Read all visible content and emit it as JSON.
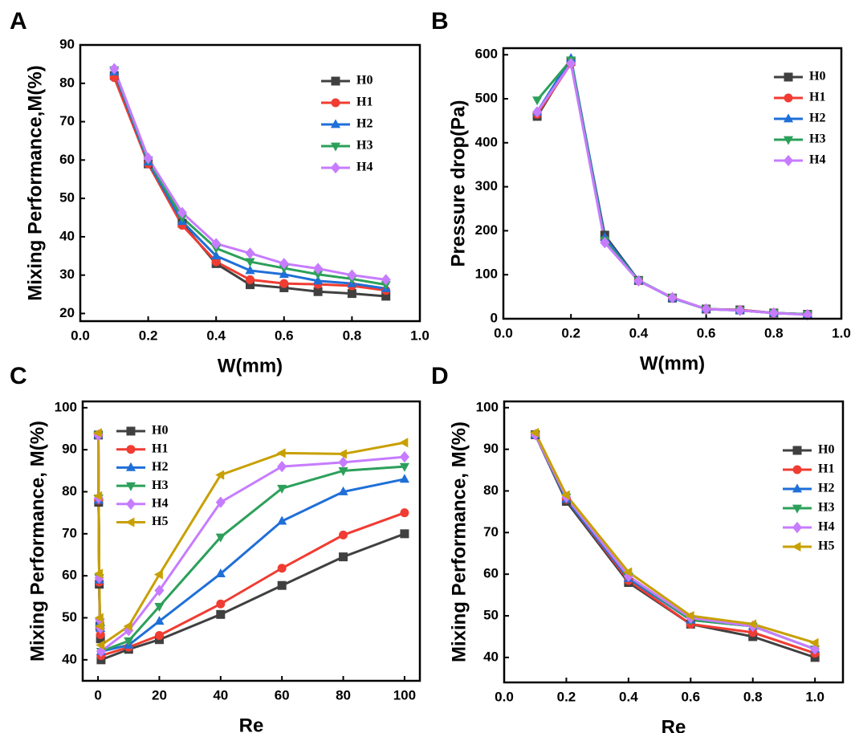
{
  "chart_data": [
    {
      "type": "line",
      "panel": "A",
      "x_label": "W(mm)",
      "y_label": "Mixing Performance,M(%)",
      "x": [
        0.1,
        0.2,
        0.3,
        0.4,
        0.5,
        0.6,
        0.7,
        0.8,
        0.9
      ],
      "xlim": [
        0,
        1
      ],
      "xticks": [
        {
          "value": 0,
          "label": "0.0"
        },
        0.2,
        0.4,
        0.6,
        0.8,
        {
          "value": 1,
          "label": "1.0"
        }
      ],
      "ylim": [
        18,
        90
      ],
      "yticks": [
        20,
        30,
        40,
        50,
        60,
        70,
        80,
        90
      ],
      "legend": "upper right",
      "series": [
        {
          "name": "H0",
          "color": "#404040",
          "marker": "square",
          "values": [
            82,
            59,
            43.5,
            33,
            27.5,
            26.7,
            25.7,
            25.2,
            24.5
          ]
        },
        {
          "name": "H1",
          "color": "#f03c32",
          "marker": "circle",
          "values": [
            81.5,
            59,
            43,
            33.5,
            28.8,
            27.8,
            27.6,
            27.2,
            26
          ]
        },
        {
          "name": "H2",
          "color": "#1f6fd8",
          "marker": "triangle-up",
          "values": [
            83,
            59.5,
            44,
            35,
            31.2,
            30.2,
            28.5,
            27.8,
            26.5
          ]
        },
        {
          "name": "H3",
          "color": "#2ca05a",
          "marker": "triangle-down",
          "values": [
            83.5,
            60,
            45,
            37,
            33.5,
            31.8,
            30.2,
            29,
            27.5
          ]
        },
        {
          "name": "H4",
          "color": "#c77cff",
          "marker": "diamond",
          "values": [
            83.8,
            60.5,
            46.3,
            38.2,
            35.7,
            33,
            31.7,
            30,
            28.8
          ]
        }
      ]
    },
    {
      "type": "line",
      "panel": "B",
      "x_label": "W(mm)",
      "y_label": "Pressure drop(Pa)",
      "x": [
        0.1,
        0.2,
        0.3,
        0.4,
        0.5,
        0.6,
        0.7,
        0.8,
        0.9
      ],
      "xlim": [
        0,
        1
      ],
      "xticks": [
        {
          "value": 0,
          "label": "0.0"
        },
        0.2,
        0.4,
        0.6,
        0.8,
        {
          "value": 1,
          "label": "1.0"
        }
      ],
      "ylim": [
        0,
        615
      ],
      "yticks": [
        0,
        100,
        200,
        300,
        400,
        500,
        600
      ],
      "legend": "upper right",
      "series": [
        {
          "name": "H0",
          "color": "#404040",
          "marker": "square",
          "values": [
            460,
            585,
            190,
            87,
            47,
            22,
            20,
            13,
            10
          ]
        },
        {
          "name": "H1",
          "color": "#f03c32",
          "marker": "circle",
          "values": [
            465,
            580,
            180,
            86,
            48,
            22,
            20,
            13,
            10
          ]
        },
        {
          "name": "H2",
          "color": "#1f6fd8",
          "marker": "triangle-up",
          "values": [
            470,
            592,
            185,
            87,
            47,
            22,
            19,
            13,
            10
          ]
        },
        {
          "name": "H3",
          "color": "#2ca05a",
          "marker": "triangle-down",
          "values": [
            497,
            588,
            178,
            87,
            48,
            22,
            19,
            13,
            10
          ]
        },
        {
          "name": "H4",
          "color": "#c77cff",
          "marker": "diamond",
          "values": [
            470,
            580,
            173,
            86,
            48,
            22,
            19,
            13,
            9
          ]
        }
      ]
    },
    {
      "type": "line",
      "panel": "C",
      "x_label": "Re",
      "y_label": "Mixing Performance, M(%)",
      "x": [
        0.1,
        0.2,
        0.4,
        0.6,
        0.8,
        1,
        10,
        20,
        40,
        60,
        80,
        100
      ],
      "xlim": [
        -5,
        105
      ],
      "xticks": [
        0,
        20,
        40,
        60,
        80,
        100
      ],
      "ylim": [
        35,
        101.5
      ],
      "yticks": [
        40,
        50,
        60,
        70,
        80,
        90,
        100
      ],
      "legend": "upper left",
      "series": [
        {
          "name": "H0",
          "color": "#404040",
          "marker": "square",
          "values": [
            93.5,
            77.5,
            58,
            48,
            45,
            40,
            42.5,
            44.8,
            50.8,
            57.7,
            64.5,
            70
          ]
        },
        {
          "name": "H1",
          "color": "#f03c32",
          "marker": "circle",
          "values": [
            93.5,
            78,
            58.5,
            48,
            46,
            41,
            43,
            45.8,
            53.3,
            61.8,
            69.7,
            75
          ]
        },
        {
          "name": "H2",
          "color": "#1f6fd8",
          "marker": "triangle-up",
          "values": [
            93.5,
            78,
            59,
            49,
            47.5,
            42,
            43.5,
            49.2,
            60.5,
            73,
            80,
            83
          ]
        },
        {
          "name": "H3",
          "color": "#2ca05a",
          "marker": "triangle-down",
          "values": [
            93.5,
            78.5,
            59.5,
            49,
            47.5,
            42,
            44.5,
            52.7,
            69.2,
            80.8,
            85,
            86
          ]
        },
        {
          "name": "H4",
          "color": "#c77cff",
          "marker": "diamond",
          "values": [
            93.5,
            78.5,
            59.5,
            49.5,
            47.5,
            42,
            47,
            56.5,
            77.5,
            86,
            87,
            88.3
          ]
        },
        {
          "name": "H5",
          "color": "#c8a000",
          "marker": "triangle-left",
          "values": [
            94,
            79,
            60.5,
            50,
            48,
            43.5,
            48,
            60.3,
            84,
            89.2,
            89,
            91.7
          ]
        }
      ]
    },
    {
      "type": "line",
      "panel": "D",
      "x_label": "Re",
      "y_label": "Mixing Performance, M(%)",
      "x": [
        0.1,
        0.2,
        0.4,
        0.6,
        0.8,
        1
      ],
      "xlim": [
        0,
        1.09
      ],
      "xticks": [
        {
          "value": 0,
          "label": "0.0"
        },
        0.2,
        0.4,
        0.6,
        0.8,
        {
          "value": 1,
          "label": "1.0"
        }
      ],
      "ylim": [
        34,
        101.5
      ],
      "yticks": [
        40,
        50,
        60,
        70,
        80,
        90,
        100
      ],
      "legend": "upper right",
      "series": [
        {
          "name": "H0",
          "color": "#404040",
          "marker": "square",
          "values": [
            93.5,
            77.5,
            58,
            48,
            45,
            40
          ]
        },
        {
          "name": "H1",
          "color": "#f03c32",
          "marker": "circle",
          "values": [
            93.5,
            78,
            58.5,
            48,
            46,
            41
          ]
        },
        {
          "name": "H2",
          "color": "#1f6fd8",
          "marker": "triangle-up",
          "values": [
            93.5,
            78,
            59,
            49,
            47.5,
            42
          ]
        },
        {
          "name": "H3",
          "color": "#2ca05a",
          "marker": "triangle-down",
          "values": [
            93.5,
            78.5,
            59.5,
            49,
            47.5,
            42
          ]
        },
        {
          "name": "H4",
          "color": "#c77cff",
          "marker": "diamond",
          "values": [
            93.5,
            78.5,
            59.5,
            49.5,
            47.5,
            42
          ]
        },
        {
          "name": "H5",
          "color": "#c8a000",
          "marker": "triangle-left",
          "values": [
            94,
            79,
            60.5,
            50,
            48,
            43.5
          ]
        }
      ]
    }
  ]
}
